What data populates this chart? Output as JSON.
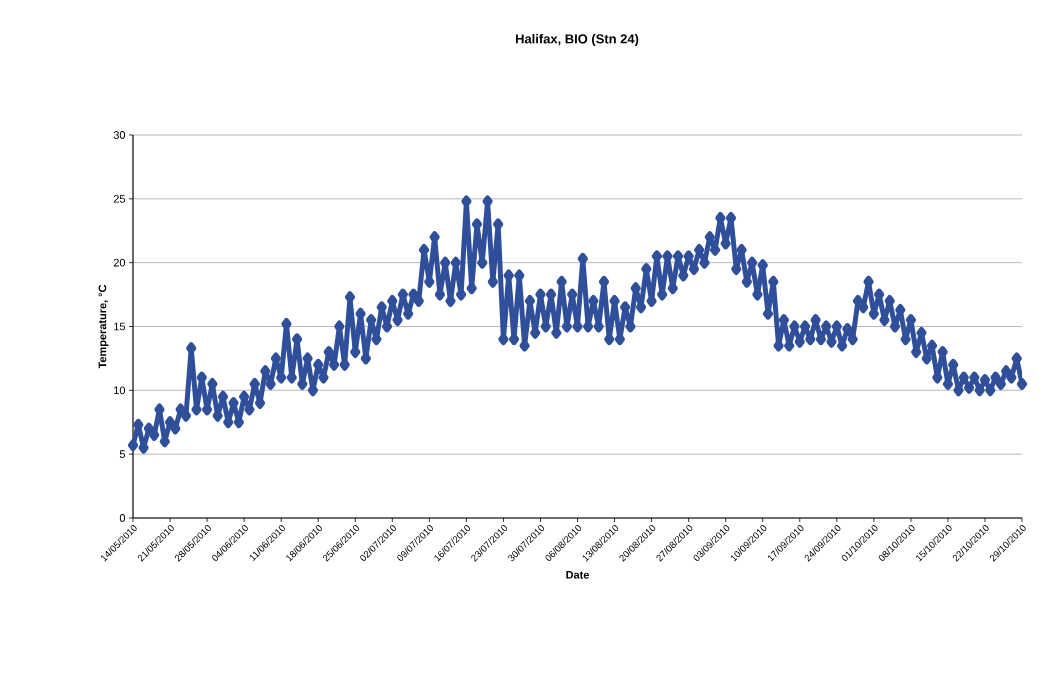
{
  "chart_data": {
    "type": "line",
    "title": "Halifax, BIO (Stn 24)",
    "xlabel": "Date",
    "ylabel": "Temperature, °C",
    "color": "#2f4f9a",
    "marker": "diamond",
    "grid": "y",
    "xlim": [
      "2010-05-14",
      "2010-10-29"
    ],
    "ylim": [
      0,
      30
    ],
    "yticks": [
      0,
      5,
      10,
      15,
      20,
      25,
      30
    ],
    "xticks": [
      {
        "value": "2010-05-14",
        "label": "14/05/2010"
      },
      {
        "value": "2010-05-21",
        "label": "21/05/2010"
      },
      {
        "value": "2010-05-28",
        "label": "28/05/2010"
      },
      {
        "value": "2010-06-04",
        "label": "04/06/2010"
      },
      {
        "value": "2010-06-11",
        "label": "11/06/2010"
      },
      {
        "value": "2010-06-18",
        "label": "18/06/2010"
      },
      {
        "value": "2010-06-25",
        "label": "25/06/2010"
      },
      {
        "value": "2010-07-02",
        "label": "02/07/2010"
      },
      {
        "value": "2010-07-09",
        "label": "09/07/2010"
      },
      {
        "value": "2010-07-16",
        "label": "16/07/2010"
      },
      {
        "value": "2010-07-23",
        "label": "23/07/2010"
      },
      {
        "value": "2010-07-30",
        "label": "30/07/2010"
      },
      {
        "value": "2010-08-06",
        "label": "06/08/2010"
      },
      {
        "value": "2010-08-13",
        "label": "13/08/2010"
      },
      {
        "value": "2010-08-20",
        "label": "20/08/2010"
      },
      {
        "value": "2010-08-27",
        "label": "27/08/2010"
      },
      {
        "value": "2010-09-03",
        "label": "03/09/2010"
      },
      {
        "value": "2010-09-10",
        "label": "10/09/2010"
      },
      {
        "value": "2010-09-17",
        "label": "17/09/2010"
      },
      {
        "value": "2010-09-24",
        "label": "24/09/2010"
      },
      {
        "value": "2010-10-01",
        "label": "01/10/2010"
      },
      {
        "value": "2010-10-08",
        "label": "08/10/2010"
      },
      {
        "value": "2010-10-15",
        "label": "15/10/2010"
      },
      {
        "value": "2010-10-22",
        "label": "22/10/2010"
      },
      {
        "value": "2010-10-29",
        "label": "29/10/2010"
      }
    ],
    "x": [
      "2010-05-14",
      "2010-05-15",
      "2010-05-16",
      "2010-05-17",
      "2010-05-18",
      "2010-05-19",
      "2010-05-20",
      "2010-05-21",
      "2010-05-22",
      "2010-05-23",
      "2010-05-24",
      "2010-05-25",
      "2010-05-26",
      "2010-05-27",
      "2010-05-28",
      "2010-05-29",
      "2010-05-30",
      "2010-05-31",
      "2010-06-01",
      "2010-06-02",
      "2010-06-03",
      "2010-06-04",
      "2010-06-05",
      "2010-06-06",
      "2010-06-07",
      "2010-06-08",
      "2010-06-09",
      "2010-06-10",
      "2010-06-11",
      "2010-06-12",
      "2010-06-13",
      "2010-06-14",
      "2010-06-15",
      "2010-06-16",
      "2010-06-17",
      "2010-06-18",
      "2010-06-19",
      "2010-06-20",
      "2010-06-21",
      "2010-06-22",
      "2010-06-23",
      "2010-06-24",
      "2010-06-25",
      "2010-06-26",
      "2010-06-27",
      "2010-06-28",
      "2010-06-29",
      "2010-06-30",
      "2010-07-01",
      "2010-07-02",
      "2010-07-03",
      "2010-07-04",
      "2010-07-05",
      "2010-07-06",
      "2010-07-07",
      "2010-07-08",
      "2010-07-09",
      "2010-07-10",
      "2010-07-11",
      "2010-07-12",
      "2010-07-13",
      "2010-07-14",
      "2010-07-15",
      "2010-07-16",
      "2010-07-17",
      "2010-07-18",
      "2010-07-19",
      "2010-07-20",
      "2010-07-21",
      "2010-07-22",
      "2010-07-23",
      "2010-07-24",
      "2010-07-25",
      "2010-07-26",
      "2010-07-27",
      "2010-07-28",
      "2010-07-29",
      "2010-07-30",
      "2010-07-31",
      "2010-08-01",
      "2010-08-02",
      "2010-08-03",
      "2010-08-04",
      "2010-08-05",
      "2010-08-06",
      "2010-08-07",
      "2010-08-08",
      "2010-08-09",
      "2010-08-10",
      "2010-08-11",
      "2010-08-12",
      "2010-08-13",
      "2010-08-14",
      "2010-08-15",
      "2010-08-16",
      "2010-08-17",
      "2010-08-18",
      "2010-08-19",
      "2010-08-20",
      "2010-08-21",
      "2010-08-22",
      "2010-08-23",
      "2010-08-24",
      "2010-08-25",
      "2010-08-26",
      "2010-08-27",
      "2010-08-28",
      "2010-08-29",
      "2010-08-30",
      "2010-08-31",
      "2010-09-01",
      "2010-09-02",
      "2010-09-03",
      "2010-09-04",
      "2010-09-05",
      "2010-09-06",
      "2010-09-07",
      "2010-09-08",
      "2010-09-09",
      "2010-09-10",
      "2010-09-11",
      "2010-09-12",
      "2010-09-13",
      "2010-09-14",
      "2010-09-15",
      "2010-09-16",
      "2010-09-17",
      "2010-09-18",
      "2010-09-19",
      "2010-09-20",
      "2010-09-21",
      "2010-09-22",
      "2010-09-23",
      "2010-09-24",
      "2010-09-25",
      "2010-09-26",
      "2010-09-27",
      "2010-09-28",
      "2010-09-29",
      "2010-09-30",
      "2010-10-01",
      "2010-10-02",
      "2010-10-03",
      "2010-10-04",
      "2010-10-05",
      "2010-10-06",
      "2010-10-07",
      "2010-10-08",
      "2010-10-09",
      "2010-10-10",
      "2010-10-11",
      "2010-10-12",
      "2010-10-13",
      "2010-10-14",
      "2010-10-15",
      "2010-10-16",
      "2010-10-17",
      "2010-10-18",
      "2010-10-19",
      "2010-10-20",
      "2010-10-21",
      "2010-10-22",
      "2010-10-23",
      "2010-10-24",
      "2010-10-25",
      "2010-10-26",
      "2010-10-27",
      "2010-10-28",
      "2010-10-29"
    ],
    "values": [
      5.7,
      7.3,
      5.5,
      7,
      6.5,
      8.5,
      6,
      7.5,
      7,
      8.5,
      8,
      13.3,
      8.5,
      11,
      8.5,
      10.5,
      8,
      9.5,
      7.5,
      9,
      7.5,
      9.5,
      8.5,
      10.5,
      9,
      11.5,
      10.5,
      12.5,
      11,
      15.2,
      11,
      14,
      10.5,
      12.5,
      10,
      12,
      11,
      13,
      12,
      15,
      12,
      17.3,
      13,
      16,
      12.5,
      15.5,
      14,
      16.5,
      15,
      17,
      15.5,
      17.5,
      16,
      17.5,
      17,
      21,
      18.5,
      22,
      17.5,
      20,
      17,
      20,
      17.5,
      24.8,
      18,
      23,
      20,
      24.8,
      18.5,
      23,
      14,
      19,
      14,
      19,
      13.5,
      17,
      14.5,
      17.5,
      15,
      17.5,
      14.5,
      18.5,
      15,
      17.5,
      15,
      20.3,
      15,
      17,
      15,
      18.5,
      14,
      17,
      14,
      16.5,
      15,
      18,
      16.5,
      19.5,
      17,
      20.5,
      17.5,
      20.5,
      18,
      20.5,
      19,
      20.5,
      19.5,
      21,
      20,
      22,
      21,
      23.5,
      21.5,
      23.5,
      19.5,
      21,
      18.5,
      20,
      17.5,
      19.8,
      16,
      18.5,
      13.5,
      15.5,
      13.5,
      15,
      13.8,
      15,
      14,
      15.5,
      14,
      15,
      13.8,
      15,
      13.5,
      14.8,
      14,
      17,
      16.5,
      18.5,
      16,
      17.5,
      15.5,
      17,
      15,
      16.3,
      14,
      15.5,
      13,
      14.5,
      12.5,
      13.5,
      11,
      13,
      10.5,
      12,
      10,
      11,
      10.2,
      11,
      10,
      10.8,
      10,
      11,
      10.5,
      11.5,
      11,
      12.5,
      10.5
    ]
  }
}
